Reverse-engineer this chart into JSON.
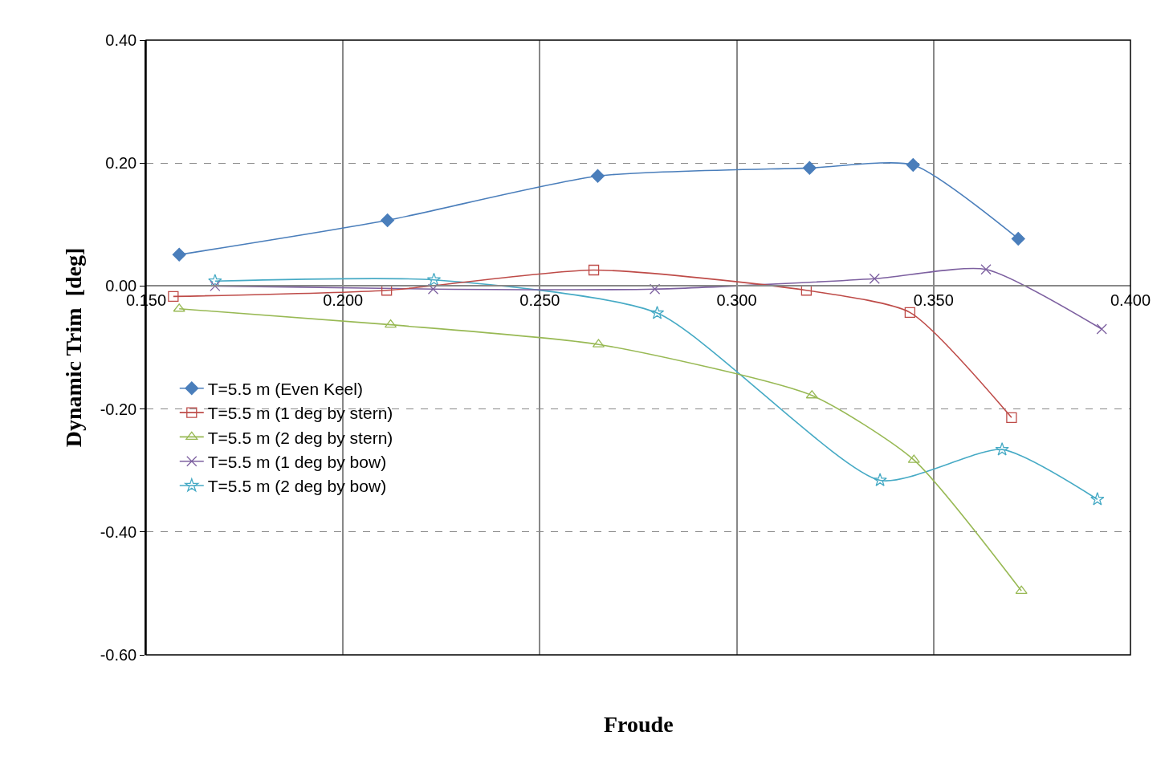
{
  "chart_data": {
    "type": "line",
    "xlabel": "Froude",
    "ylabel": "Dynamic Trim  [deg]",
    "xlim": [
      0.15,
      0.4
    ],
    "xticks": [
      {
        "value": 0.15,
        "label": "0.150"
      },
      {
        "value": 0.2,
        "label": "0.200"
      },
      {
        "value": 0.25,
        "label": "0.250"
      },
      {
        "value": 0.3,
        "label": "0.300"
      },
      {
        "value": 0.35,
        "label": "0.350"
      },
      {
        "value": 0.4,
        "label": "0.400"
      }
    ],
    "ylim": [
      -0.6,
      0.4
    ],
    "yticks": [
      {
        "value": -0.6,
        "label": "-0.60"
      },
      {
        "value": -0.4,
        "label": "-0.40"
      },
      {
        "value": -0.2,
        "label": "-0.20"
      },
      {
        "value": 0,
        "label": "0.00"
      },
      {
        "value": 0.2,
        "label": "0.20"
      },
      {
        "value": 0.4,
        "label": "0.40"
      }
    ],
    "grid": true,
    "legend": "left",
    "line_style": "solid",
    "series": [
      {
        "name": "T=5.5 m (Even Keel)",
        "color": "#4a7ebb",
        "marker": "diamond",
        "x": [
          0.1584,
          0.2113,
          0.2647,
          0.3185,
          0.3448,
          0.3715
        ],
        "values": [
          0.051,
          0.107,
          0.179,
          0.192,
          0.197,
          0.077
        ]
      },
      {
        "name": "T=5.5 m (1 deg by stern)",
        "color": "#be4b48",
        "marker": "square",
        "x": [
          0.1569,
          0.2111,
          0.2637,
          0.3177,
          0.344,
          0.3698
        ],
        "values": [
          -0.017,
          -0.007,
          0.026,
          -0.007,
          -0.043,
          -0.214
        ]
      },
      {
        "name": "T=5.5 m (2 deg by stern)",
        "color": "#98b954",
        "marker": "triangle",
        "x": [
          0.1584,
          0.2121,
          0.2649,
          0.3191,
          0.345,
          0.3723
        ],
        "values": [
          -0.037,
          -0.063,
          -0.095,
          -0.178,
          -0.283,
          -0.496
        ]
      },
      {
        "name": "T=5.5 m (1 deg by bow)",
        "color": "#7d60a0",
        "marker": "cross",
        "x": [
          0.1675,
          0.2229,
          0.2792,
          0.335,
          0.3633,
          0.3927
        ],
        "values": [
          0.0,
          -0.005,
          -0.005,
          0.012,
          0.027,
          -0.07
        ]
      },
      {
        "name": "T=5.5 m (2 deg by bow)",
        "color": "#46aac5",
        "marker": "star",
        "x": [
          0.1675,
          0.2231,
          0.2798,
          0.3364,
          0.3674,
          0.3916
        ],
        "values": [
          0.008,
          0.01,
          -0.044,
          -0.316,
          -0.266,
          -0.347
        ]
      }
    ]
  }
}
